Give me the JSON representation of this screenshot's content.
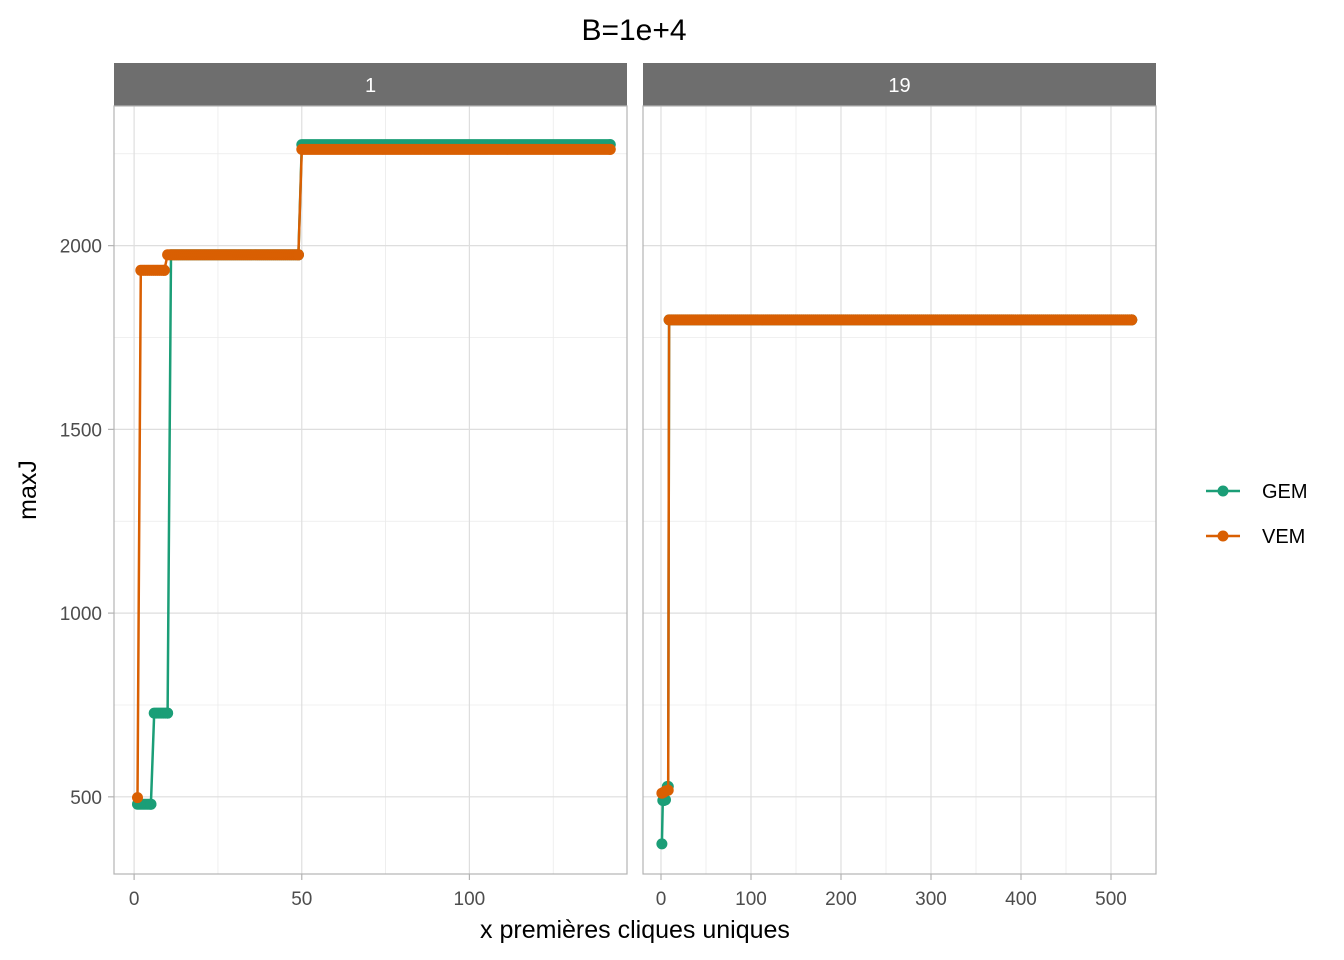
{
  "chart_data": {
    "type": "line",
    "title": "B=1e+4",
    "xlabel": "x premières cliques uniques",
    "ylabel": "maxJ",
    "ylim": [
      290,
      2380
    ],
    "yticks": [
      500,
      1000,
      1500,
      2000
    ],
    "grid": true,
    "legend": {
      "position": "right",
      "entries": [
        {
          "name": "GEM",
          "color": "#1b9e77"
        },
        {
          "name": "VEM",
          "color": "#d95f02"
        }
      ]
    },
    "panels": [
      {
        "strip": "1",
        "xlim": [
          -6,
          147
        ],
        "xticks": [
          0,
          50,
          100
        ],
        "series": [
          {
            "name": "GEM",
            "color": "#1b9e77",
            "x": [
              1,
              5,
              6,
              10,
              11,
              49,
              50,
              142
            ],
            "y": [
              480,
              480,
              728,
              728,
              1975,
              1975,
              2275,
              2275
            ]
          },
          {
            "name": "VEM",
            "color": "#d95f02",
            "x": [
              1,
              2,
              9,
              10,
              49,
              50,
              142
            ],
            "y": [
              498,
              1933,
              1933,
              1975,
              1975,
              2262,
              2262
            ]
          }
        ]
      },
      {
        "strip": "19",
        "xlim": [
          -20,
          550
        ],
        "xticks": [
          0,
          100,
          200,
          300,
          400,
          500
        ],
        "series": [
          {
            "name": "GEM",
            "color": "#1b9e77",
            "x": [
              1,
              2,
              3,
              5,
              7,
              8,
              9,
              523
            ],
            "y": [
              372,
              490,
              490,
              492,
              528,
              528,
              1798,
              1798
            ]
          },
          {
            "name": "VEM",
            "color": "#d95f02",
            "x": [
              1,
              3,
              5,
              8,
              9,
              523
            ],
            "y": [
              510,
              512,
              516,
              518,
              1798,
              1798
            ]
          }
        ]
      }
    ]
  }
}
